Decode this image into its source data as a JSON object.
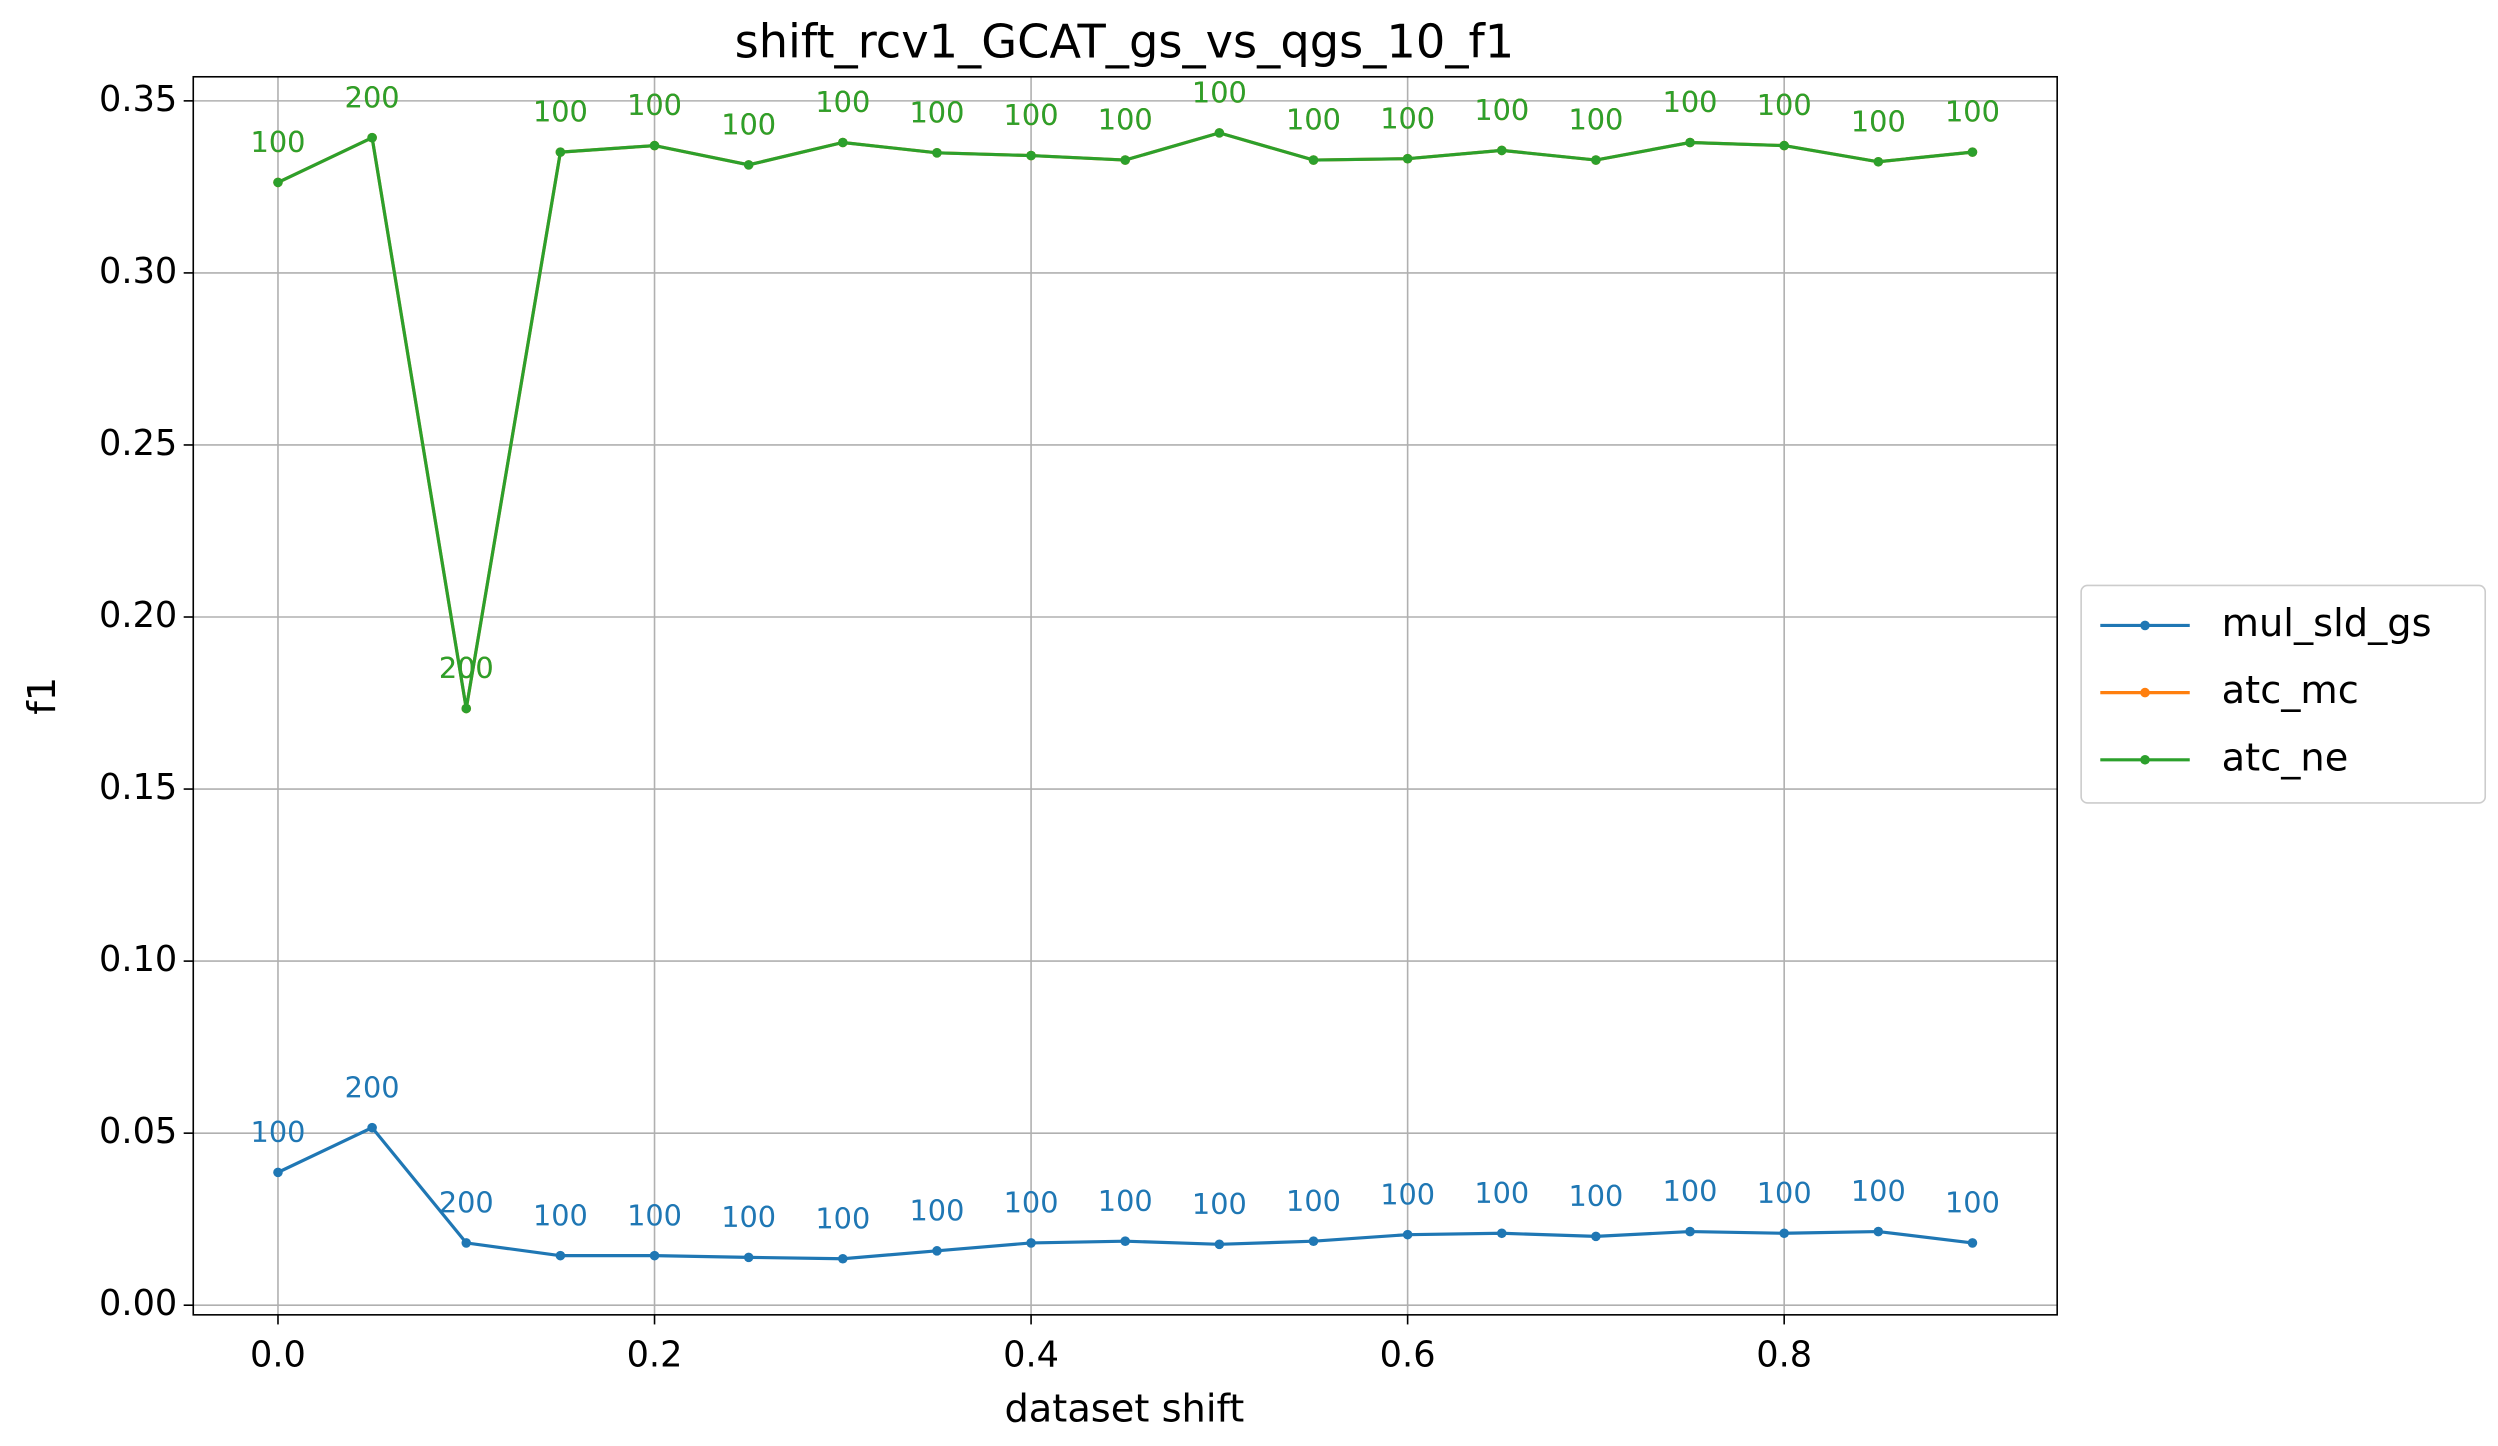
{
  "chart_data": {
    "type": "line",
    "title": "shift_rcv1_GCAT_gs_vs_qgs_10_f1",
    "x_label": "dataset shift",
    "y_label": "f1",
    "x": [
      0.0,
      0.05,
      0.1,
      0.15,
      0.2,
      0.25,
      0.3,
      0.35,
      0.4,
      0.45,
      0.5,
      0.55,
      0.6,
      0.65,
      0.7,
      0.75,
      0.8,
      0.85,
      0.9
    ],
    "series": [
      {
        "name": "mul_sld_gs",
        "color": "#1f77b4",
        "values": [
          0.0386,
          0.0516,
          0.0181,
          0.0144,
          0.0144,
          0.0139,
          0.0135,
          0.0158,
          0.0181,
          0.0186,
          0.0177,
          0.0186,
          0.0205,
          0.0209,
          0.02,
          0.0214,
          0.0209,
          0.0214,
          0.0181
        ],
        "counts": [
          100,
          200,
          200,
          100,
          100,
          100,
          100,
          100,
          100,
          100,
          100,
          100,
          100,
          100,
          100,
          100,
          100,
          100,
          100
        ]
      },
      {
        "name": "atc_mc",
        "color": "#ff7f0e",
        "values": [
          0.3263,
          0.3393,
          0.1734,
          0.3351,
          0.337,
          0.3314,
          0.3379,
          0.3349,
          0.3341,
          0.3328,
          0.3407,
          0.3328,
          0.3332,
          0.3356,
          0.3328,
          0.3379,
          0.337,
          0.3323,
          0.3351
        ],
        "counts": [
          100,
          200,
          200,
          100,
          100,
          100,
          100,
          100,
          100,
          100,
          100,
          100,
          100,
          100,
          100,
          100,
          100,
          100,
          100
        ]
      },
      {
        "name": "atc_ne",
        "color": "#2ca02c",
        "values": [
          0.3263,
          0.3393,
          0.1734,
          0.3351,
          0.337,
          0.3314,
          0.3379,
          0.3349,
          0.3341,
          0.3328,
          0.3407,
          0.3328,
          0.3332,
          0.3356,
          0.3328,
          0.3379,
          0.337,
          0.3323,
          0.3351
        ],
        "counts": [
          100,
          200,
          200,
          100,
          100,
          100,
          100,
          100,
          100,
          100,
          100,
          100,
          100,
          100,
          100,
          100,
          100,
          100,
          100
        ]
      }
    ],
    "xlim": [
      -0.045,
      0.945
    ],
    "ylim": [
      -0.0028,
      0.357
    ],
    "xticks": [
      {
        "value": 0.0,
        "label": "0.0"
      },
      0.2,
      0.4,
      0.6,
      0.8
    ],
    "yticks": [
      {
        "value": 0.0,
        "label": "0.00"
      },
      0.05,
      {
        "value": 0.1,
        "label": "0.10"
      },
      0.15,
      {
        "value": 0.2,
        "label": "0.20"
      },
      0.25,
      {
        "value": 0.3,
        "label": "0.30"
      },
      0.35
    ],
    "grid": true,
    "legend": "right"
  }
}
